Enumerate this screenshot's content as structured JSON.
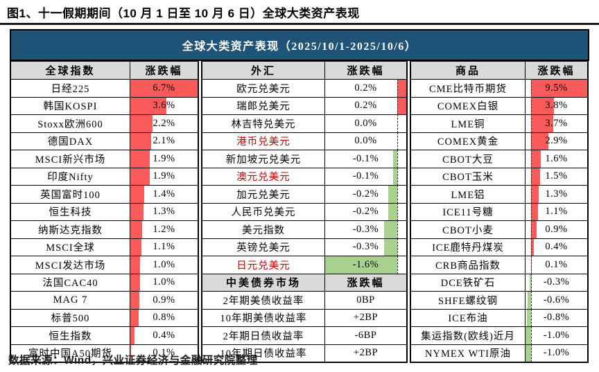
{
  "title": "图1、十一假期期间（10 月 1 日至 10 月 6 日）全球大类资产表现",
  "banner": "全球大类资产表现（2025/10/1-2025/10/6）",
  "footer": "数据来源：Wind，兴业证券经济与金融研究院整理",
  "colors": {
    "banner_bg": "#1F5377",
    "header_bg": "#D9D9D9",
    "positive_bar": "#FA5A5A",
    "negative_bar": "#A9D18E",
    "highlight_text": "#C00000",
    "border": "#000000"
  },
  "chart_data": {
    "type": "table",
    "title": "全球大类资产表现（2025/10/1-2025/10/6）",
    "change_unit": "%",
    "groups": [
      {
        "header": "全球指数",
        "change_header": "涨跌幅",
        "rows": [
          {
            "label": "日经225",
            "value": 6.7,
            "display": "6.7%"
          },
          {
            "label": "韩国KOSPI",
            "value": 3.6,
            "display": "3.6%"
          },
          {
            "label": "Stoxx欧洲600",
            "value": 2.2,
            "display": "2.2%"
          },
          {
            "label": "德国DAX",
            "value": 2.1,
            "display": "2.1%"
          },
          {
            "label": "MSCI新兴市场",
            "value": 1.9,
            "display": "1.9%"
          },
          {
            "label": "印度Nifty",
            "value": 1.9,
            "display": "1.9%"
          },
          {
            "label": "英国富时100",
            "value": 1.4,
            "display": "1.4%"
          },
          {
            "label": "恒生科技",
            "value": 1.3,
            "display": "1.3%"
          },
          {
            "label": "纳斯达克指数",
            "value": 1.2,
            "display": "1.2%"
          },
          {
            "label": "MSCI全球",
            "value": 1.1,
            "display": "1.1%"
          },
          {
            "label": "MSCI发达市场",
            "value": 1.0,
            "display": "1.0%"
          },
          {
            "label": "法国CAC40",
            "value": 1.0,
            "display": "1.0%"
          },
          {
            "label": "MAG 7",
            "value": 0.9,
            "display": "0.9%"
          },
          {
            "label": "标普500",
            "value": 0.8,
            "display": "0.8%"
          },
          {
            "label": "恒生指数",
            "value": 0.4,
            "display": "0.4%"
          },
          {
            "label": "富时中国A50期货",
            "value": 0.1,
            "display": "0.1%"
          }
        ]
      },
      {
        "header": "外汇",
        "change_header": "涨跌幅",
        "rows": [
          {
            "label": "欧元兑美元",
            "value": 0.2,
            "display": "0.2%"
          },
          {
            "label": "瑞郎兑美元",
            "value": 0.2,
            "display": "0.2%"
          },
          {
            "label": "林吉特兑美元",
            "value": 0.0,
            "display": "0.0%"
          },
          {
            "label": "港币兑美元",
            "value": 0.0,
            "display": "0.0%",
            "highlight": true
          },
          {
            "label": "新加坡元兑美元",
            "value": -0.1,
            "display": "-0.1%"
          },
          {
            "label": "澳元兑美元",
            "value": -0.1,
            "display": "-0.1%",
            "highlight": true
          },
          {
            "label": "加元兑美元",
            "value": -0.2,
            "display": "-0.2%"
          },
          {
            "label": "人民币兑美元",
            "value": -0.2,
            "display": "-0.2%"
          },
          {
            "label": "美元指数",
            "value": -0.3,
            "display": "-0.3%"
          },
          {
            "label": "英镑兑美元",
            "value": -0.3,
            "display": "-0.3%"
          },
          {
            "label": "日元兑美元",
            "value": -1.6,
            "display": "-1.6%",
            "highlight": true
          }
        ],
        "sub_section": {
          "header": "中美债券市场",
          "change_header": "涨跌幅",
          "rows": [
            {
              "label": "2年期美债收益率",
              "value_bp": 0,
              "display": "0BP"
            },
            {
              "label": "10年期美债收益率",
              "value_bp": 2,
              "display": "+2BP"
            },
            {
              "label": "2年期日债收益率",
              "value_bp": -6,
              "display": "-6BP"
            },
            {
              "label": "10年期日债收益率",
              "value_bp": 2,
              "display": "+2BP"
            }
          ]
        }
      },
      {
        "header": "商品",
        "change_header": "涨跌幅",
        "rows": [
          {
            "label": "CME比特币期货",
            "value": 9.5,
            "display": "9.5%"
          },
          {
            "label": "COMEX白银",
            "value": 3.8,
            "display": "3.8%"
          },
          {
            "label": "LME铜",
            "value": 3.7,
            "display": "3.7%"
          },
          {
            "label": "COMEX黄金",
            "value": 2.9,
            "display": "2.9%"
          },
          {
            "label": "CBOT大豆",
            "value": 1.6,
            "display": "1.6%"
          },
          {
            "label": "CBOT玉米",
            "value": 1.5,
            "display": "1.5%"
          },
          {
            "label": "LME铝",
            "value": 1.3,
            "display": "1.3%"
          },
          {
            "label": "ICE11号糖",
            "value": 1.1,
            "display": "1.1%"
          },
          {
            "label": "CBOT小麦",
            "value": 0.9,
            "display": "0.9%"
          },
          {
            "label": "ICE鹿特丹煤炭",
            "value": 0.4,
            "display": "0.4%"
          },
          {
            "label": "CRB商品指数",
            "value": 0.1,
            "display": "0.1%"
          },
          {
            "label": "DCE铁矿石",
            "value": -0.3,
            "display": "-0.3%"
          },
          {
            "label": "SHFE螺纹钢",
            "value": -0.6,
            "display": "-0.6%"
          },
          {
            "label": "ICE布油",
            "value": -0.8,
            "display": "-0.8%"
          },
          {
            "label": "集运指数(欧线)近月",
            "value": -1.0,
            "display": "-1.0%"
          },
          {
            "label": "NYMEX WTI原油",
            "value": -1.0,
            "display": "-1.0%"
          }
        ]
      }
    ]
  }
}
